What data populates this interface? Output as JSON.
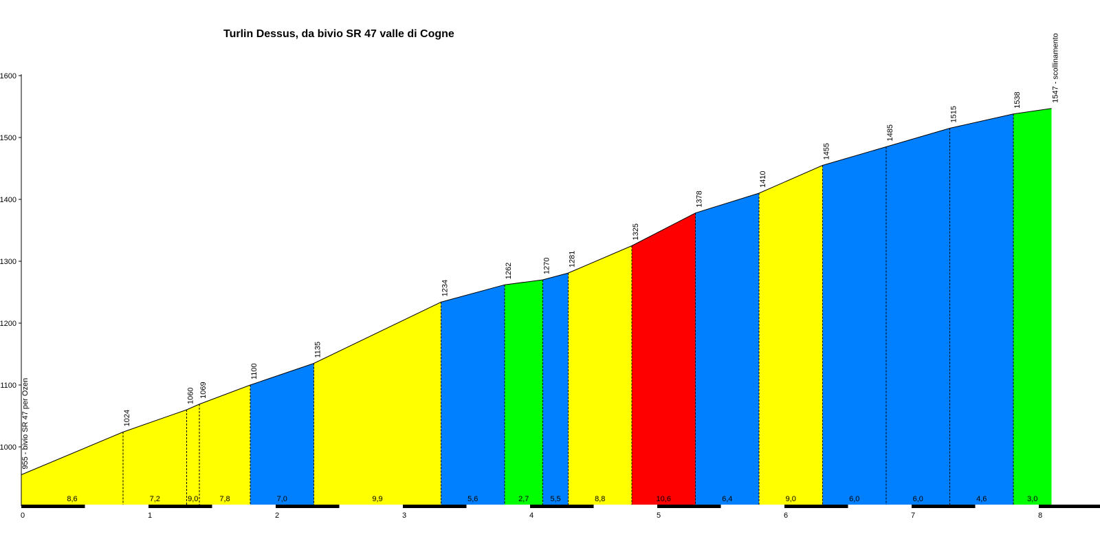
{
  "chart_data": {
    "type": "area",
    "title": "Turlin Dessus, da bivio SR 47 valle di Cogne",
    "xlabel": "",
    "ylabel": "",
    "xlim": [
      0,
      8.5
    ],
    "ylim": [
      900,
      1600
    ],
    "x_ticks": [
      "0",
      "1",
      "2",
      "3",
      "4",
      "5",
      "6",
      "7",
      "8"
    ],
    "y_ticks": [
      "1000",
      "1100",
      "1200",
      "1300",
      "1400",
      "1500",
      "1600"
    ],
    "points": [
      {
        "x": 0.0,
        "y": 955,
        "label": "955 - bivio SR 47 per Ozen"
      },
      {
        "x": 0.8,
        "y": 1024,
        "label": "1024"
      },
      {
        "x": 1.3,
        "y": 1060,
        "label": "1060"
      },
      {
        "x": 1.4,
        "y": 1069,
        "label": "1069"
      },
      {
        "x": 1.8,
        "y": 1100,
        "label": "1100"
      },
      {
        "x": 2.3,
        "y": 1135,
        "label": "1135"
      },
      {
        "x": 3.3,
        "y": 1234,
        "label": "1234"
      },
      {
        "x": 3.8,
        "y": 1262,
        "label": "1262"
      },
      {
        "x": 4.1,
        "y": 1270,
        "label": "1270"
      },
      {
        "x": 4.3,
        "y": 1281,
        "label": "1281"
      },
      {
        "x": 4.8,
        "y": 1325,
        "label": "1325"
      },
      {
        "x": 5.3,
        "y": 1378,
        "label": "1378"
      },
      {
        "x": 5.8,
        "y": 1410,
        "label": "1410"
      },
      {
        "x": 6.3,
        "y": 1455,
        "label": "1455"
      },
      {
        "x": 6.8,
        "y": 1485,
        "label": "1485"
      },
      {
        "x": 7.3,
        "y": 1515,
        "label": "1515"
      },
      {
        "x": 7.8,
        "y": 1538,
        "label": "1538"
      },
      {
        "x": 8.1,
        "y": 1547,
        "label": "1547 - scollinamento"
      }
    ],
    "segments": [
      {
        "gradient": "8,6",
        "color": "#ffff00"
      },
      {
        "gradient": "7,2",
        "color": "#ffff00"
      },
      {
        "gradient": "9,0",
        "color": "#ffff00"
      },
      {
        "gradient": "7,8",
        "color": "#ffff00"
      },
      {
        "gradient": "7,0",
        "color": "#0080ff"
      },
      {
        "gradient": "9,9",
        "color": "#ffff00"
      },
      {
        "gradient": "5,6",
        "color": "#0080ff"
      },
      {
        "gradient": "2,7",
        "color": "#00ff00"
      },
      {
        "gradient": "5,5",
        "color": "#0080ff"
      },
      {
        "gradient": "8,8",
        "color": "#ffff00"
      },
      {
        "gradient": "10,6",
        "color": "#ff0000"
      },
      {
        "gradient": "6,4",
        "color": "#0080ff"
      },
      {
        "gradient": "9,0",
        "color": "#ffff00"
      },
      {
        "gradient": "6,0",
        "color": "#0080ff"
      },
      {
        "gradient": "6,0",
        "color": "#0080ff"
      },
      {
        "gradient": "4,6",
        "color": "#0080ff"
      },
      {
        "gradient": "3,0",
        "color": "#00ff00"
      }
    ],
    "grid": false,
    "legend": "none"
  }
}
